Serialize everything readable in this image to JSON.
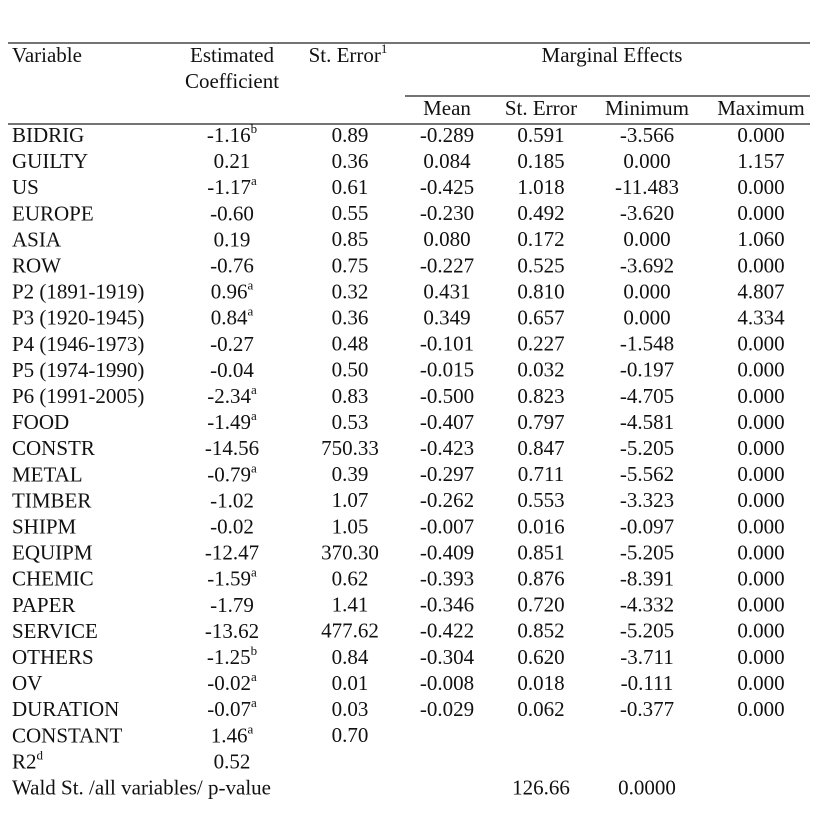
{
  "table": {
    "header": {
      "variable": "Variable",
      "coef": [
        "Estimated",
        "Coefficient"
      ],
      "se": "St. Error",
      "se_note": "1",
      "group": "Marginal Effects",
      "sub": {
        "mean": "Mean",
        "me_se": "St. Error",
        "min": "Minimum",
        "max": "Maximum"
      }
    },
    "rows": [
      {
        "variable": "BIDRIG",
        "coef": "-1.16",
        "coef_note": "b",
        "se": "0.89",
        "mean": "-0.289",
        "me_se": "0.591",
        "min": "-3.566",
        "max": "0.000"
      },
      {
        "variable": "GUILTY",
        "coef": "0.21",
        "se": "0.36",
        "mean": "0.084",
        "me_se": "0.185",
        "min": "0.000",
        "max": "1.157"
      },
      {
        "variable": "US",
        "coef": "-1.17",
        "coef_note": "a",
        "se": "0.61",
        "mean": "-0.425",
        "me_se": "1.018",
        "min": "-11.483",
        "max": "0.000"
      },
      {
        "variable": "EUROPE",
        "coef": "-0.60",
        "se": "0.55",
        "mean": "-0.230",
        "me_se": "0.492",
        "min": "-3.620",
        "max": "0.000"
      },
      {
        "variable": "ASIA",
        "coef": "0.19",
        "se": "0.85",
        "mean": "0.080",
        "me_se": "0.172",
        "min": "0.000",
        "max": "1.060"
      },
      {
        "variable": "ROW",
        "coef": "-0.76",
        "se": "0.75",
        "mean": "-0.227",
        "me_se": "0.525",
        "min": "-3.692",
        "max": "0.000"
      },
      {
        "variable": "P2 (1891-1919)",
        "coef": "0.96",
        "coef_note": "a",
        "se": "0.32",
        "mean": "0.431",
        "me_se": "0.810",
        "min": "0.000",
        "max": "4.807"
      },
      {
        "variable": "P3 (1920-1945)",
        "coef": "0.84",
        "coef_note": "a",
        "se": "0.36",
        "mean": "0.349",
        "me_se": "0.657",
        "min": "0.000",
        "max": "4.334"
      },
      {
        "variable": "P4 (1946-1973)",
        "coef": "-0.27",
        "se": "0.48",
        "mean": "-0.101",
        "me_se": "0.227",
        "min": "-1.548",
        "max": "0.000"
      },
      {
        "variable": "P5 (1974-1990)",
        "coef": "-0.04",
        "se": "0.50",
        "mean": "-0.015",
        "me_se": "0.032",
        "min": "-0.197",
        "max": "0.000"
      },
      {
        "variable": "P6 (1991-2005)",
        "coef": "-2.34",
        "coef_note": "a",
        "se": "0.83",
        "mean": "-0.500",
        "me_se": "0.823",
        "min": "-4.705",
        "max": "0.000"
      },
      {
        "variable": "FOOD",
        "coef": "-1.49",
        "coef_note": "a",
        "se": "0.53",
        "mean": "-0.407",
        "me_se": "0.797",
        "min": "-4.581",
        "max": "0.000"
      },
      {
        "variable": "CONSTR",
        "coef": "-14.56",
        "se": "750.33",
        "mean": "-0.423",
        "me_se": "0.847",
        "min": "-5.205",
        "max": "0.000"
      },
      {
        "variable": "METAL",
        "coef": "-0.79",
        "coef_note": "a",
        "se": "0.39",
        "mean": "-0.297",
        "me_se": "0.711",
        "min": "-5.562",
        "max": "0.000"
      },
      {
        "variable": "TIMBER",
        "coef": "-1.02",
        "se": "1.07",
        "mean": "-0.262",
        "me_se": "0.553",
        "min": "-3.323",
        "max": "0.000"
      },
      {
        "variable": "SHIPM",
        "coef": "-0.02",
        "se": "1.05",
        "mean": "-0.007",
        "me_se": "0.016",
        "min": "-0.097",
        "max": "0.000"
      },
      {
        "variable": "EQUIPM",
        "coef": "-12.47",
        "se": "370.30",
        "mean": "-0.409",
        "me_se": "0.851",
        "min": "-5.205",
        "max": "0.000"
      },
      {
        "variable": "CHEMIC",
        "coef": "-1.59",
        "coef_note": "a",
        "se": "0.62",
        "mean": "-0.393",
        "me_se": "0.876",
        "min": "-8.391",
        "max": "0.000"
      },
      {
        "variable": "PAPER",
        "coef": "-1.79",
        "se": "1.41",
        "mean": "-0.346",
        "me_se": "0.720",
        "min": "-4.332",
        "max": "0.000"
      },
      {
        "variable": "SERVICE",
        "coef": "-13.62",
        "se": "477.62",
        "mean": "-0.422",
        "me_se": "0.852",
        "min": "-5.205",
        "max": "0.000"
      },
      {
        "variable": "OTHERS",
        "coef": "-1.25",
        "coef_note": "b",
        "se": "0.84",
        "mean": "-0.304",
        "me_se": "0.620",
        "min": "-3.711",
        "max": "0.000"
      },
      {
        "variable": "OV",
        "coef": "-0.02",
        "coef_note": "a",
        "se": "0.01",
        "mean": "-0.008",
        "me_se": "0.018",
        "min": "-0.111",
        "max": "0.000"
      },
      {
        "variable": "DURATION",
        "coef": "-0.07",
        "coef_note": "a",
        "se": "0.03",
        "mean": "-0.029",
        "me_se": "0.062",
        "min": "-0.377",
        "max": "0.000"
      },
      {
        "variable": "CONSTANT",
        "coef": "1.46",
        "coef_note": "a",
        "se": "0.70"
      },
      {
        "variable": "R2",
        "variable_note": "d",
        "coef": "0.52"
      },
      {
        "variable": "Wald St. /all variables/ p-value",
        "me_se": "126.66",
        "min": "0.0000"
      }
    ]
  }
}
